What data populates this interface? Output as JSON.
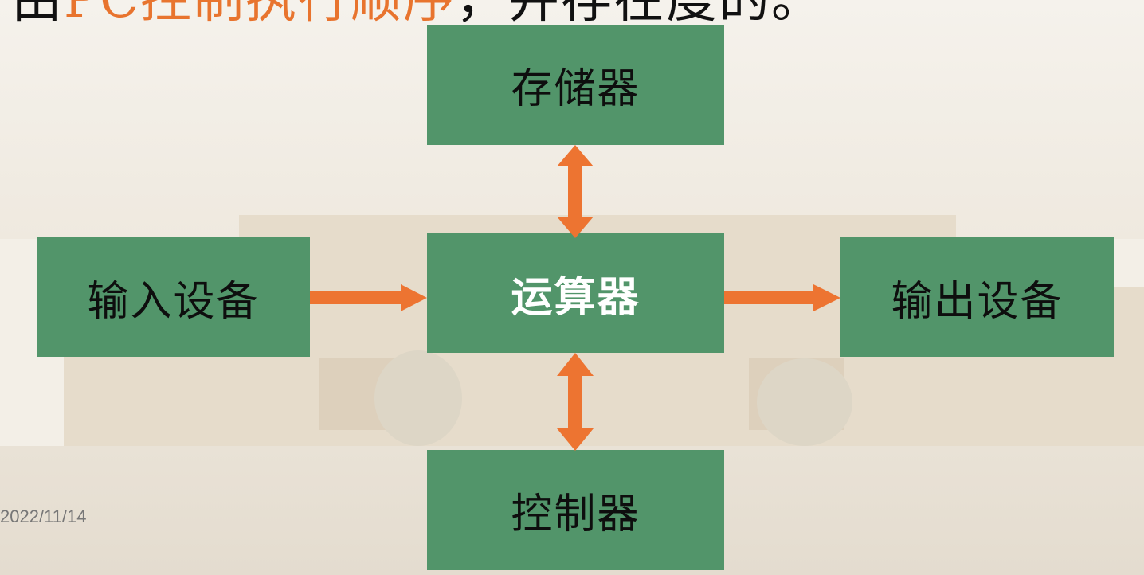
{
  "slide": {
    "title_fragment_black_1": "由",
    "title_fragment_orange": "PC控制执行顺序",
    "title_fragment_black_2": "，并存在度的。"
  },
  "diagram": {
    "nodes": {
      "memory": "存储器",
      "alu": "运算器",
      "input": "输入设备",
      "output": "输出设备",
      "controller": "控制器"
    },
    "arrow_color": "#ed7431",
    "box_color": "#52956a"
  },
  "footer": {
    "date": "2022/11/14"
  }
}
